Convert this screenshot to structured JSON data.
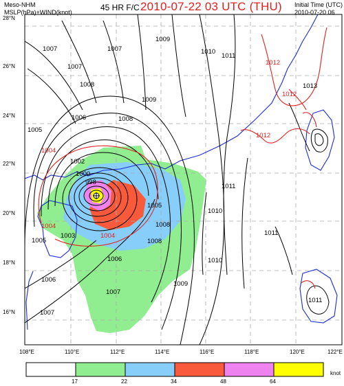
{
  "header": {
    "model": "Meso-NHM",
    "fields": "MSLP(hPa)+WIND(knot)",
    "forecast": "45 HR F/C",
    "valid_time": "2010-07-22 03 UTC (THU)",
    "init_label": "Initial Time (UTC)",
    "init_time": "2010-07-20 06"
  },
  "axes": {
    "lat_labels": [
      "28°N",
      "26°N",
      "24°N",
      "22°N",
      "20°N",
      "18°N",
      "16°N"
    ],
    "lon_labels": [
      "108°E",
      "110°E",
      "112°E",
      "114°E",
      "116°E",
      "118°E",
      "120°E",
      "122°E"
    ]
  },
  "colorbar": {
    "colors": [
      "#ffffff",
      "#90ee90",
      "#87cefa",
      "#fa5a3c",
      "#ee82ee",
      "#ffff00"
    ],
    "ticks": [
      "17",
      "22",
      "34",
      "48",
      "64"
    ],
    "unit": "knot"
  },
  "isobar_labels": {
    "black": [
      "1007",
      "1007",
      "1008",
      "1006",
      "1005",
      "1002",
      "1000",
      "998",
      "1003",
      "1005",
      "1006",
      "1007",
      "1006",
      "1007",
      "1008",
      "1009",
      "1010",
      "1011",
      "1009",
      "1010",
      "1011",
      "1013",
      "1007",
      "1009",
      "1008",
      "1010",
      "1008",
      "1011",
      "1011",
      "1005"
    ],
    "red": [
      "1004",
      "1004",
      "1004",
      "1012",
      "1012",
      "1012"
    ]
  }
}
